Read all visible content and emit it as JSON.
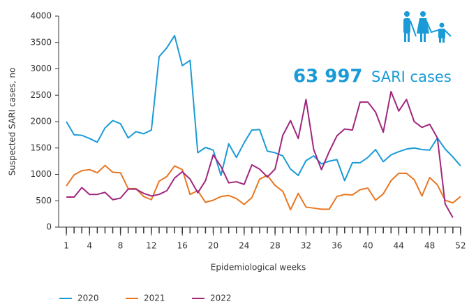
{
  "chart_data": {
    "type": "line",
    "headline_value": "63 997",
    "headline_text": "SARI cases",
    "x_label": "Epidemiological weeks",
    "y_label": "Suspected SARI cases, no",
    "x": [
      1,
      2,
      3,
      4,
      5,
      6,
      7,
      8,
      9,
      10,
      11,
      12,
      13,
      14,
      15,
      16,
      17,
      18,
      19,
      20,
      21,
      22,
      23,
      24,
      25,
      26,
      27,
      28,
      29,
      30,
      31,
      32,
      33,
      34,
      35,
      36,
      37,
      38,
      39,
      40,
      41,
      42,
      43,
      44,
      45,
      46,
      47,
      48,
      49,
      50,
      51,
      52
    ],
    "xlim": [
      0,
      53
    ],
    "xticks": [
      1,
      4,
      8,
      12,
      16,
      20,
      24,
      28,
      32,
      36,
      40,
      44,
      48,
      52
    ],
    "ylim": [
      0,
      4000
    ],
    "yticks": [
      0,
      500,
      1000,
      1500,
      2000,
      2500,
      3000,
      3500,
      4000
    ],
    "series": [
      {
        "name": "2020",
        "color": "#1a9bd7",
        "values": [
          2000,
          1750,
          1740,
          1680,
          1610,
          1880,
          2020,
          1960,
          1690,
          1810,
          1770,
          1840,
          3230,
          3400,
          3630,
          3060,
          3160,
          1410,
          1510,
          1460,
          980,
          1580,
          1320,
          1600,
          1840,
          1850,
          1440,
          1410,
          1350,
          1100,
          980,
          1260,
          1350,
          1200,
          1250,
          1280,
          880,
          1220,
          1220,
          1320,
          1470,
          1240,
          1370,
          1430,
          1480,
          1500,
          1470,
          1460,
          1690,
          1480,
          1330,
          1160
        ]
      },
      {
        "name": "2021",
        "color": "#e87722",
        "values": [
          780,
          990,
          1070,
          1090,
          1030,
          1170,
          1040,
          1030,
          730,
          730,
          580,
          520,
          870,
          960,
          1160,
          1090,
          620,
          690,
          470,
          510,
          580,
          600,
          540,
          430,
          560,
          910,
          980,
          790,
          680,
          330,
          640,
          380,
          360,
          340,
          340,
          580,
          620,
          610,
          710,
          740,
          510,
          630,
          880,
          1020,
          1020,
          900,
          590,
          940,
          800,
          510,
          460,
          580
        ]
      },
      {
        "name": "2022",
        "color": "#a0267d",
        "values": [
          570,
          570,
          750,
          620,
          620,
          660,
          520,
          550,
          720,
          720,
          640,
          590,
          620,
          690,
          930,
          1050,
          910,
          650,
          880,
          1370,
          1150,
          840,
          860,
          810,
          1180,
          1100,
          950,
          1100,
          1740,
          2020,
          1680,
          2420,
          1470,
          1090,
          1430,
          1730,
          1860,
          1840,
          2370,
          2370,
          2180,
          1800,
          2570,
          2200,
          2420,
          2000,
          1890,
          1950,
          1690,
          440,
          180,
          null
        ]
      }
    ]
  }
}
